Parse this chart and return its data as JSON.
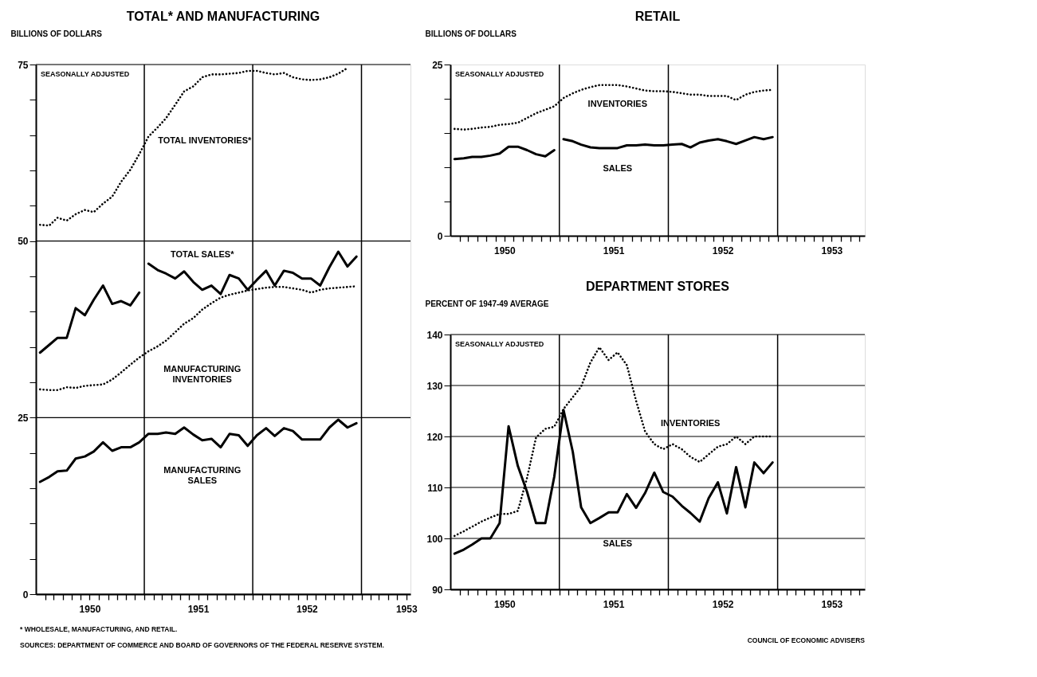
{
  "chart_data": [
    {
      "type": "line",
      "title": "TOTAL* AND MANUFACTURING",
      "ylabel": "BILLIONS OF DOLLARS",
      "annotations": [
        "SEASONALLY ADJUSTED",
        "* WHOLESALE, MANUFACTURING, AND RETAIL.",
        "SOURCES: DEPARTMENT OF COMMERCE AND BOARD OF GOVERNORS OF THE FEDERAL RESERVE SYSTEM."
      ],
      "legend": false,
      "marker": "none",
      "grid": "y",
      "x": [
        "1950-01-15",
        "1950-02-15",
        "1950-03-15",
        "1950-04-15",
        "1950-05-15",
        "1950-06-15",
        "1950-07-15",
        "1950-08-15",
        "1950-09-15",
        "1950-10-15",
        "1950-11-15",
        "1950-12-15",
        "1951-01-15",
        "1951-02-15",
        "1951-03-15",
        "1951-04-15",
        "1951-05-15",
        "1951-06-15",
        "1951-07-15",
        "1951-08-15",
        "1951-09-15",
        "1951-10-15",
        "1951-11-15",
        "1951-12-15",
        "1952-01-15",
        "1952-02-15",
        "1952-03-15",
        "1952-04-15",
        "1952-05-15",
        "1952-06-15",
        "1952-07-15",
        "1952-08-15",
        "1952-09-15",
        "1952-10-15",
        "1952-11-15",
        "1952-12-15"
      ],
      "xlim": [
        "1950-01-01",
        "1953-06-15"
      ],
      "xticks": [
        {
          "value": "1950-02-01",
          "label": null
        },
        {
          "value": "1950-03-01",
          "label": null
        },
        {
          "value": "1950-04-01",
          "label": null
        },
        {
          "value": "1950-05-01",
          "label": null
        },
        {
          "value": "1950-06-01",
          "label": null
        },
        {
          "value": "1950-07-01",
          "label": "1950"
        },
        {
          "value": "1950-08-01",
          "label": null
        },
        {
          "value": "1950-09-01",
          "label": null
        },
        {
          "value": "1950-10-01",
          "label": null
        },
        {
          "value": "1950-11-01",
          "label": null
        },
        {
          "value": "1950-12-01",
          "label": null
        },
        {
          "value": "1951-01-01",
          "label": null
        },
        {
          "value": "1951-02-01",
          "label": null
        },
        {
          "value": "1951-03-01",
          "label": null
        },
        {
          "value": "1951-04-01",
          "label": null
        },
        {
          "value": "1951-05-01",
          "label": null
        },
        {
          "value": "1951-06-01",
          "label": null
        },
        {
          "value": "1951-07-01",
          "label": "1951"
        },
        {
          "value": "1951-08-01",
          "label": null
        },
        {
          "value": "1951-09-01",
          "label": null
        },
        {
          "value": "1951-10-01",
          "label": null
        },
        {
          "value": "1951-11-01",
          "label": null
        },
        {
          "value": "1951-12-01",
          "label": null
        },
        {
          "value": "1952-01-01",
          "label": null
        },
        {
          "value": "1952-02-01",
          "label": null
        },
        {
          "value": "1952-03-01",
          "label": null
        },
        {
          "value": "1952-04-01",
          "label": null
        },
        {
          "value": "1952-05-01",
          "label": null
        },
        {
          "value": "1952-06-01",
          "label": null
        },
        {
          "value": "1952-07-01",
          "label": "1952"
        },
        {
          "value": "1952-08-01",
          "label": null
        },
        {
          "value": "1952-09-01",
          "label": null
        },
        {
          "value": "1952-10-01",
          "label": null
        },
        {
          "value": "1952-11-01",
          "label": null
        },
        {
          "value": "1952-12-01",
          "label": null
        },
        {
          "value": "1953-01-01",
          "label": null
        },
        {
          "value": "1953-02-01",
          "label": null
        },
        {
          "value": "1953-03-01",
          "label": null
        },
        {
          "value": "1953-04-01",
          "label": null
        },
        {
          "value": "1953-05-01",
          "label": null
        },
        {
          "value": "1953-06-01",
          "label": "1953"
        }
      ],
      "ylim": [
        0,
        75
      ],
      "yticks": [
        0,
        {
          "value": 5,
          "label": null
        },
        {
          "value": 10,
          "label": null
        },
        {
          "value": 15,
          "label": null
        },
        {
          "value": 20,
          "label": null
        },
        25,
        {
          "value": 30,
          "label": null
        },
        {
          "value": 35,
          "label": null
        },
        {
          "value": 40,
          "label": null
        },
        {
          "value": 45,
          "label": null
        },
        50,
        {
          "value": 55,
          "label": null
        },
        {
          "value": 60,
          "label": null
        },
        {
          "value": 65,
          "label": null
        },
        {
          "value": 70,
          "label": null
        },
        75
      ],
      "ref_lines": [
        {
          "axis": "x",
          "value": "1951-01-01"
        },
        {
          "axis": "x",
          "value": "1952-01-01"
        },
        {
          "axis": "x",
          "value": "1953-01-01"
        }
      ],
      "series": [
        {
          "name": "TOTAL INVENTORIES*",
          "color": "#000000",
          "line_style": "dotted",
          "values": [
            52.3,
            52.2,
            53.3,
            52.9,
            53.8,
            54.4,
            54.1,
            55.3,
            56.3,
            58.4,
            60.1,
            62.3,
            64.8,
            66.1,
            67.4,
            69.3,
            71.2,
            71.9,
            73.2,
            73.6,
            73.6,
            73.7,
            73.8,
            74.1,
            74.1,
            73.8,
            73.6,
            73.8,
            73.2,
            72.9,
            72.8,
            72.9,
            73.2,
            73.7,
            74.5,
            null
          ]
        },
        {
          "name": "TOTAL SALES*",
          "color": "#000000",
          "line_style": "solid",
          "x": [
            "1950-01-15",
            "1950-02-15",
            "1950-03-15",
            "1950-04-15",
            "1950-05-15",
            "1950-06-15",
            "1950-07-15",
            "1950-08-15",
            "1950-09-15",
            "1950-10-15",
            "1950-11-15",
            "1950-12-15",
            "1951-01-01",
            "1951-01-15",
            "1951-02-15",
            "1951-03-15",
            "1951-04-15",
            "1951-05-15",
            "1951-06-15",
            "1951-07-15",
            "1951-08-15",
            "1951-09-15",
            "1951-10-15",
            "1951-11-15",
            "1951-12-15",
            "1952-01-15",
            "1952-02-15",
            "1952-03-15",
            "1952-04-15",
            "1952-05-15",
            "1952-06-15",
            "1952-07-15",
            "1952-08-15",
            "1952-09-15",
            "1952-10-15",
            "1952-11-15",
            "1952-12-15"
          ],
          "values": [
            34.2,
            35.3,
            36.3,
            36.3,
            40.5,
            39.5,
            41.7,
            43.7,
            41.1,
            41.5,
            40.9,
            42.7,
            null,
            46.8,
            45.9,
            45.4,
            44.7,
            45.7,
            44.2,
            43.1,
            43.7,
            42.5,
            45.2,
            44.7,
            43.1,
            44.5,
            45.8,
            43.7,
            45.8,
            45.5,
            44.7,
            44.7,
            43.7,
            46.3,
            48.5,
            46.4,
            47.8
          ]
        },
        {
          "name": "MANUFACTURING\nINVENTORIES",
          "color": "#000000",
          "line_style": "dotted",
          "values": [
            29.0,
            28.9,
            28.9,
            29.3,
            29.2,
            29.5,
            29.6,
            29.7,
            30.4,
            31.4,
            32.5,
            33.5,
            34.4,
            35.1,
            35.9,
            37.1,
            38.3,
            39.1,
            40.3,
            41.2,
            42.0,
            42.4,
            42.7,
            43.0,
            43.2,
            43.4,
            43.5,
            43.5,
            43.3,
            43.1,
            42.7,
            43.1,
            43.3,
            43.4,
            43.5,
            43.6
          ]
        },
        {
          "name": "MANUFACTURING\nSALES",
          "color": "#000000",
          "line_style": "solid",
          "values": [
            15.9,
            16.6,
            17.4,
            17.5,
            19.2,
            19.5,
            20.2,
            21.5,
            20.3,
            20.8,
            20.8,
            21.5,
            22.7,
            22.7,
            22.9,
            22.7,
            23.6,
            22.6,
            21.8,
            22.0,
            20.8,
            22.7,
            22.5,
            21.0,
            22.5,
            23.5,
            22.4,
            23.5,
            23.1,
            21.9,
            21.9,
            21.9,
            23.6,
            24.7,
            23.6,
            24.2
          ]
        }
      ]
    },
    {
      "type": "line",
      "title": "RETAIL",
      "ylabel": "BILLIONS OF DOLLARS",
      "annotations": [
        "SEASONALLY ADJUSTED"
      ],
      "legend": false,
      "marker": "none",
      "x": [
        "1950-01-15",
        "1950-02-15",
        "1950-03-15",
        "1950-04-15",
        "1950-05-15",
        "1950-06-15",
        "1950-07-15",
        "1950-08-15",
        "1950-09-15",
        "1950-10-15",
        "1950-11-15",
        "1950-12-15",
        "1951-01-15",
        "1951-02-15",
        "1951-03-15",
        "1951-04-15",
        "1951-05-15",
        "1951-06-15",
        "1951-07-15",
        "1951-08-15",
        "1951-09-15",
        "1951-10-15",
        "1951-11-15",
        "1951-12-15",
        "1952-01-15",
        "1952-02-15",
        "1952-03-15",
        "1952-04-15",
        "1952-05-15",
        "1952-06-15",
        "1952-07-15",
        "1952-08-15",
        "1952-09-15",
        "1952-10-15",
        "1952-11-15",
        "1952-12-15"
      ],
      "xlim": [
        "1950-01-01",
        "1953-10-20"
      ],
      "xticks": [
        {
          "value": "1950-02-01",
          "label": null
        },
        {
          "value": "1950-03-01",
          "label": null
        },
        {
          "value": "1950-04-01",
          "label": null
        },
        {
          "value": "1950-05-01",
          "label": null
        },
        {
          "value": "1950-06-01",
          "label": null
        },
        {
          "value": "1950-07-01",
          "label": "1950"
        },
        {
          "value": "1950-08-01",
          "label": null
        },
        {
          "value": "1950-09-01",
          "label": null
        },
        {
          "value": "1950-10-01",
          "label": null
        },
        {
          "value": "1950-11-01",
          "label": null
        },
        {
          "value": "1950-12-01",
          "label": null
        },
        {
          "value": "1951-01-01",
          "label": null
        },
        {
          "value": "1951-02-01",
          "label": null
        },
        {
          "value": "1951-03-01",
          "label": null
        },
        {
          "value": "1951-04-01",
          "label": null
        },
        {
          "value": "1951-05-01",
          "label": null
        },
        {
          "value": "1951-06-01",
          "label": null
        },
        {
          "value": "1951-07-01",
          "label": "1951"
        },
        {
          "value": "1951-08-01",
          "label": null
        },
        {
          "value": "1951-09-01",
          "label": null
        },
        {
          "value": "1951-10-01",
          "label": null
        },
        {
          "value": "1951-11-01",
          "label": null
        },
        {
          "value": "1951-12-01",
          "label": null
        },
        {
          "value": "1952-01-01",
          "label": null
        },
        {
          "value": "1952-02-01",
          "label": null
        },
        {
          "value": "1952-03-01",
          "label": null
        },
        {
          "value": "1952-04-01",
          "label": null
        },
        {
          "value": "1952-05-01",
          "label": null
        },
        {
          "value": "1952-06-01",
          "label": null
        },
        {
          "value": "1952-07-01",
          "label": "1952"
        },
        {
          "value": "1952-08-01",
          "label": null
        },
        {
          "value": "1952-09-01",
          "label": null
        },
        {
          "value": "1952-10-01",
          "label": null
        },
        {
          "value": "1952-11-01",
          "label": null
        },
        {
          "value": "1952-12-01",
          "label": null
        },
        {
          "value": "1953-01-01",
          "label": null
        },
        {
          "value": "1953-02-01",
          "label": null
        },
        {
          "value": "1953-03-01",
          "label": null
        },
        {
          "value": "1953-04-01",
          "label": null
        },
        {
          "value": "1953-05-01",
          "label": null
        },
        {
          "value": "1953-06-01",
          "label": null
        },
        {
          "value": "1953-07-01",
          "label": "1953"
        },
        {
          "value": "1953-08-01",
          "label": null
        },
        {
          "value": "1953-09-01",
          "label": null
        },
        {
          "value": "1953-10-01",
          "label": null
        }
      ],
      "ylim": [
        0,
        25
      ],
      "yticks": [
        0,
        {
          "value": 5,
          "label": null
        },
        {
          "value": 10,
          "label": null
        },
        {
          "value": 15,
          "label": null
        },
        {
          "value": 20,
          "label": null
        },
        25
      ],
      "ref_lines": [
        {
          "axis": "x",
          "value": "1951-01-01"
        },
        {
          "axis": "x",
          "value": "1952-01-01"
        },
        {
          "axis": "x",
          "value": "1953-01-01"
        }
      ],
      "series": [
        {
          "name": "INVENTORIES",
          "color": "#000000",
          "line_style": "dotted",
          "values": [
            15.6,
            15.5,
            15.6,
            15.8,
            15.9,
            16.2,
            16.3,
            16.5,
            17.2,
            17.9,
            18.4,
            18.9,
            20.1,
            20.8,
            21.3,
            21.7,
            22.0,
            22.0,
            22.0,
            21.8,
            21.5,
            21.2,
            21.1,
            21.1,
            21.0,
            20.8,
            20.6,
            20.6,
            20.4,
            20.4,
            20.4,
            19.8,
            20.6,
            21.0,
            21.2,
            21.3
          ]
        },
        {
          "name": "SALES",
          "color": "#000000",
          "line_style": "solid",
          "x": [
            "1950-01-15",
            "1950-02-15",
            "1950-03-15",
            "1950-04-15",
            "1950-05-15",
            "1950-06-15",
            "1950-07-15",
            "1950-08-15",
            "1950-09-15",
            "1950-10-15",
            "1950-11-15",
            "1950-12-15",
            "1951-01-01",
            "1951-01-15",
            "1951-02-15",
            "1951-03-15",
            "1951-04-15",
            "1951-05-15",
            "1951-06-15",
            "1951-07-15",
            "1951-08-15",
            "1951-09-15",
            "1951-10-15",
            "1951-11-15",
            "1951-12-15",
            "1952-01-15",
            "1952-02-15",
            "1952-03-15",
            "1952-04-15",
            "1952-05-15",
            "1952-06-15",
            "1952-07-15",
            "1952-08-15",
            "1952-09-15",
            "1952-10-15",
            "1952-11-15",
            "1952-12-15"
          ],
          "values": [
            11.2,
            11.3,
            11.5,
            11.5,
            11.7,
            12.0,
            13.0,
            13.0,
            12.5,
            11.9,
            11.6,
            12.5,
            null,
            14.1,
            13.8,
            13.3,
            12.9,
            12.8,
            12.8,
            12.8,
            13.2,
            13.2,
            13.3,
            13.2,
            13.2,
            13.3,
            13.4,
            12.9,
            13.6,
            13.9,
            14.1,
            13.8,
            13.4,
            13.9,
            14.4,
            14.1,
            14.4
          ]
        }
      ]
    },
    {
      "type": "line",
      "title": "DEPARTMENT STORES",
      "ylabel": "PERCENT OF 1947-49 AVERAGE",
      "annotations": [
        "SEASONALLY ADJUSTED",
        "COUNCIL OF ECONOMIC ADVISERS"
      ],
      "legend": false,
      "marker": "none",
      "grid": "y",
      "x": [
        "1950-01-15",
        "1950-02-15",
        "1950-03-15",
        "1950-04-15",
        "1950-05-15",
        "1950-06-15",
        "1950-07-15",
        "1950-08-15",
        "1950-09-15",
        "1950-10-15",
        "1950-11-15",
        "1950-12-15",
        "1951-01-15",
        "1951-02-15",
        "1951-03-15",
        "1951-04-15",
        "1951-05-15",
        "1951-06-15",
        "1951-07-15",
        "1951-08-15",
        "1951-09-15",
        "1951-10-15",
        "1951-11-15",
        "1951-12-15",
        "1952-01-15",
        "1952-02-15",
        "1952-03-15",
        "1952-04-15",
        "1952-05-15",
        "1952-06-15",
        "1952-07-15",
        "1952-08-15",
        "1952-09-15",
        "1952-10-15",
        "1952-11-15",
        "1952-12-15"
      ],
      "xlim": [
        "1950-01-01",
        "1953-10-20"
      ],
      "xticks": [
        {
          "value": "1950-02-01",
          "label": null
        },
        {
          "value": "1950-03-01",
          "label": null
        },
        {
          "value": "1950-04-01",
          "label": null
        },
        {
          "value": "1950-05-01",
          "label": null
        },
        {
          "value": "1950-06-01",
          "label": null
        },
        {
          "value": "1950-07-01",
          "label": "1950"
        },
        {
          "value": "1950-08-01",
          "label": null
        },
        {
          "value": "1950-09-01",
          "label": null
        },
        {
          "value": "1950-10-01",
          "label": null
        },
        {
          "value": "1950-11-01",
          "label": null
        },
        {
          "value": "1950-12-01",
          "label": null
        },
        {
          "value": "1951-01-01",
          "label": null
        },
        {
          "value": "1951-02-01",
          "label": null
        },
        {
          "value": "1951-03-01",
          "label": null
        },
        {
          "value": "1951-04-01",
          "label": null
        },
        {
          "value": "1951-05-01",
          "label": null
        },
        {
          "value": "1951-06-01",
          "label": null
        },
        {
          "value": "1951-07-01",
          "label": "1951"
        },
        {
          "value": "1951-08-01",
          "label": null
        },
        {
          "value": "1951-09-01",
          "label": null
        },
        {
          "value": "1951-10-01",
          "label": null
        },
        {
          "value": "1951-11-01",
          "label": null
        },
        {
          "value": "1951-12-01",
          "label": null
        },
        {
          "value": "1952-01-01",
          "label": null
        },
        {
          "value": "1952-02-01",
          "label": null
        },
        {
          "value": "1952-03-01",
          "label": null
        },
        {
          "value": "1952-04-01",
          "label": null
        },
        {
          "value": "1952-05-01",
          "label": null
        },
        {
          "value": "1952-06-01",
          "label": null
        },
        {
          "value": "1952-07-01",
          "label": "1952"
        },
        {
          "value": "1952-08-01",
          "label": null
        },
        {
          "value": "1952-09-01",
          "label": null
        },
        {
          "value": "1952-10-01",
          "label": null
        },
        {
          "value": "1952-11-01",
          "label": null
        },
        {
          "value": "1952-12-01",
          "label": null
        },
        {
          "value": "1953-01-01",
          "label": null
        },
        {
          "value": "1953-02-01",
          "label": null
        },
        {
          "value": "1953-03-01",
          "label": null
        },
        {
          "value": "1953-04-01",
          "label": null
        },
        {
          "value": "1953-05-01",
          "label": null
        },
        {
          "value": "1953-06-01",
          "label": null
        },
        {
          "value": "1953-07-01",
          "label": "1953"
        },
        {
          "value": "1953-08-01",
          "label": null
        },
        {
          "value": "1953-09-01",
          "label": null
        },
        {
          "value": "1953-10-01",
          "label": null
        }
      ],
      "ylim": [
        90,
        140
      ],
      "yticks": [
        90,
        100,
        110,
        120,
        130,
        140
      ],
      "ref_lines": [
        {
          "axis": "x",
          "value": "1951-01-01"
        },
        {
          "axis": "x",
          "value": "1952-01-01"
        },
        {
          "axis": "x",
          "value": "1953-01-01"
        }
      ],
      "series": [
        {
          "name": "INVENTORIES",
          "color": "#000000",
          "line_style": "dotted",
          "values": [
            100.5,
            101.4,
            102.3,
            103.3,
            104.1,
            104.8,
            104.8,
            105.4,
            111.9,
            119.8,
            121.5,
            121.9,
            125.4,
            127.7,
            129.8,
            134.5,
            137.5,
            135.0,
            136.5,
            134.0,
            127.0,
            121.0,
            118.5,
            117.5,
            118.5,
            117.5,
            116.0,
            115.0,
            116.5,
            118.0,
            118.5,
            120.0,
            118.5,
            120.0,
            120.0,
            120.0
          ]
        },
        {
          "name": "SALES",
          "color": "#000000",
          "line_style": "solid",
          "values": [
            97.0,
            97.8,
            98.8,
            100,
            100,
            103,
            122,
            114.2,
            109.1,
            103,
            103,
            112.1,
            125.2,
            117,
            106.1,
            103,
            104,
            105.1,
            105.1,
            108.7,
            106,
            108.9,
            112.9,
            109.1,
            108.2,
            106.4,
            105,
            103.3,
            107.9,
            111,
            104.9,
            114,
            106.1,
            114.9,
            112.8,
            114.9
          ]
        }
      ]
    }
  ]
}
